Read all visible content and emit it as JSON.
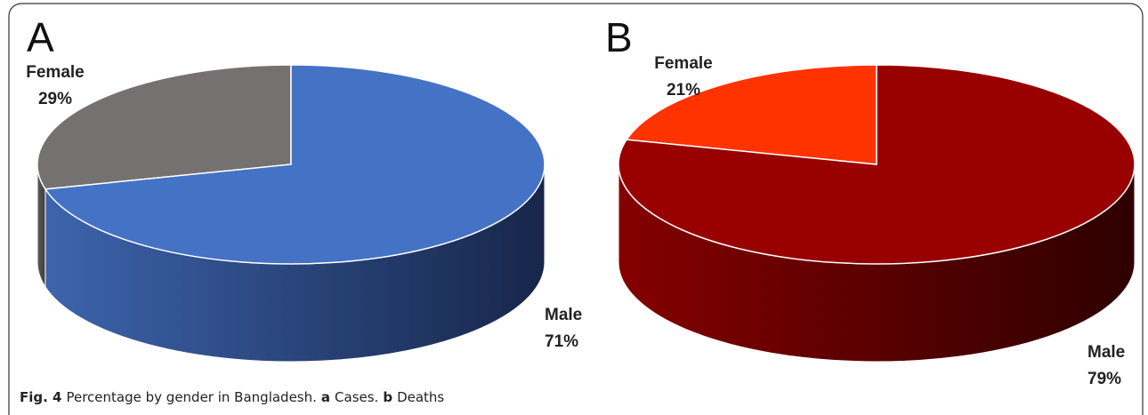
{
  "chart_data": [
    {
      "type": "pie",
      "title": "A",
      "categories": [
        "Female",
        "Male"
      ],
      "values": [
        29,
        71
      ],
      "value_labels": [
        "29%",
        "71%"
      ],
      "colors": [
        "#767171",
        "#4472c4"
      ],
      "side_colors": [
        [
          "#5e5a5a",
          "#3f3c3c"
        ],
        [
          "#3d64ad",
          "#17264a"
        ]
      ]
    },
    {
      "type": "pie",
      "title": "B",
      "categories": [
        "Female",
        "Male"
      ],
      "values": [
        21,
        79
      ],
      "value_labels": [
        "21%",
        "79%"
      ],
      "colors": [
        "#ff3300",
        "#990000"
      ],
      "side_colors": [
        [
          "#cc2900",
          "#801a00"
        ],
        [
          "#850000",
          "#2e0000"
        ]
      ]
    }
  ],
  "caption": [
    {
      "text": "Fig. 4",
      "bold": true
    },
    {
      "text": "Percentage by gender in Bangladesh."
    },
    {
      "text": "a",
      "bold": true
    },
    {
      "text": "Cases."
    },
    {
      "text": "b",
      "bold": true
    },
    {
      "text": "Deaths"
    }
  ]
}
